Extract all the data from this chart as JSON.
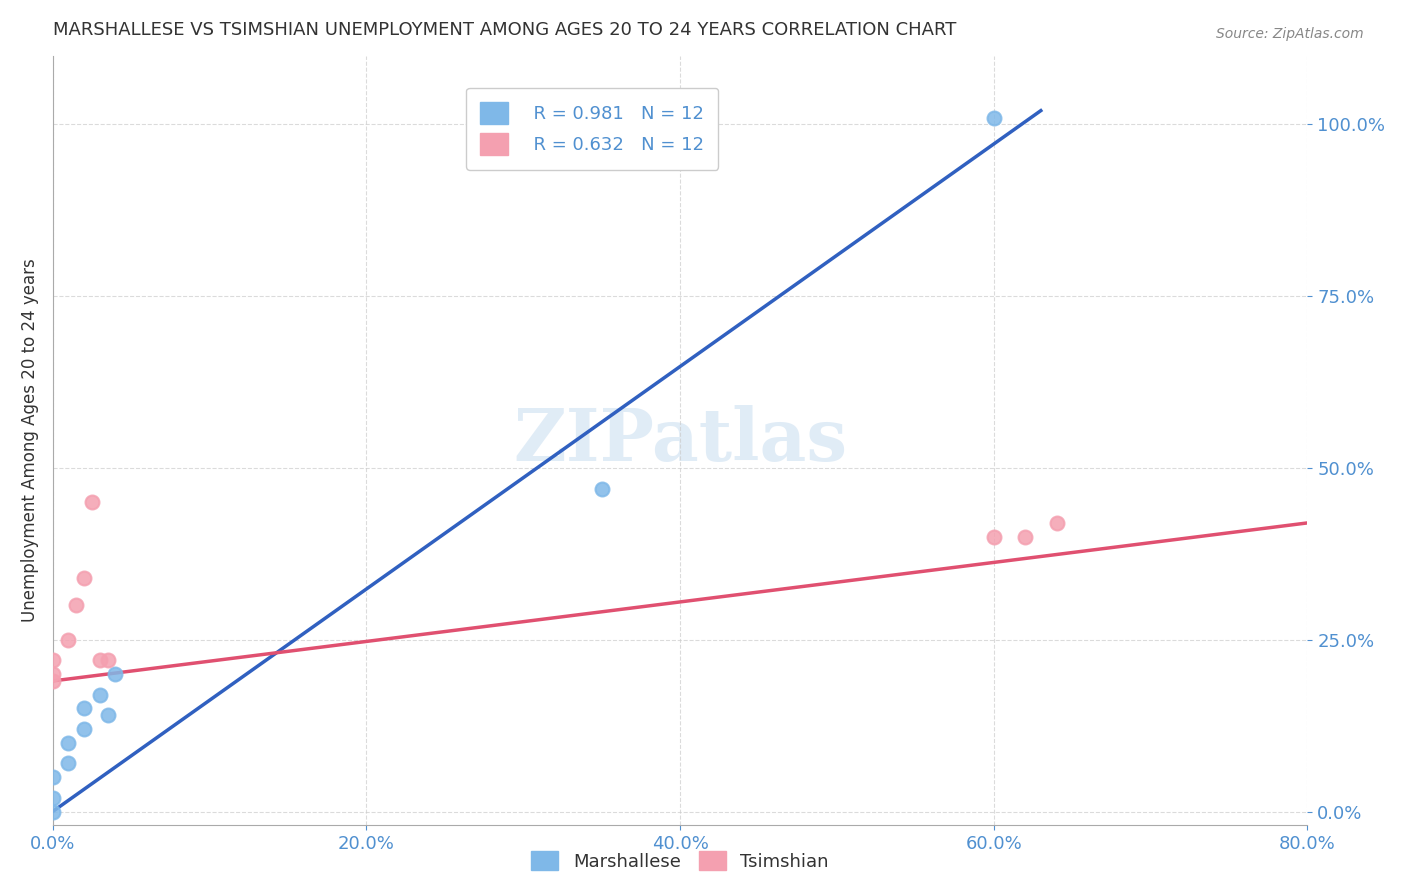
{
  "title": "MARSHALLESE VS TSIMSHIAN UNEMPLOYMENT AMONG AGES 20 TO 24 YEARS CORRELATION CHART",
  "source": "Source: ZipAtlas.com",
  "xlabel": "",
  "ylabel": "Unemployment Among Ages 20 to 24 years",
  "xlim": [
    0.0,
    0.8
  ],
  "ylim": [
    -0.02,
    1.1
  ],
  "xticks": [
    0.0,
    0.2,
    0.4,
    0.6,
    0.8
  ],
  "yticks": [
    0.0,
    0.25,
    0.5,
    0.75,
    1.0
  ],
  "marshallese_x": [
    0.0,
    0.0,
    0.0,
    0.01,
    0.01,
    0.02,
    0.02,
    0.03,
    0.035,
    0.04,
    0.35,
    0.6
  ],
  "marshallese_y": [
    0.0,
    0.02,
    0.05,
    0.07,
    0.1,
    0.12,
    0.15,
    0.17,
    0.14,
    0.2,
    0.47,
    1.01
  ],
  "tsimshian_x": [
    0.0,
    0.0,
    0.0,
    0.01,
    0.015,
    0.02,
    0.025,
    0.03,
    0.035,
    0.6,
    0.62,
    0.64
  ],
  "tsimshian_y": [
    0.19,
    0.2,
    0.22,
    0.25,
    0.3,
    0.34,
    0.45,
    0.22,
    0.22,
    0.4,
    0.4,
    0.42
  ],
  "blue_line_x": [
    0.0,
    0.63
  ],
  "blue_line_y": [
    0.0,
    1.02
  ],
  "pink_line_x": [
    0.0,
    0.8
  ],
  "pink_line_y": [
    0.19,
    0.42
  ],
  "marshallese_color": "#7fB8E8",
  "tsimshian_color": "#F4A0B0",
  "blue_line_color": "#3060C0",
  "pink_line_color": "#E05070",
  "marker_size": 100,
  "legend_r_marshallese": "R = 0.981",
  "legend_n_marshallese": "N = 12",
  "legend_r_tsimshian": "R = 0.632",
  "legend_n_tsimshian": "N = 12",
  "legend_label_marshallese": "Marshallese",
  "legend_label_tsimshian": "Tsimshian",
  "watermark": "ZIPatlas",
  "background_color": "#ffffff",
  "grid_color": "#cccccc",
  "axis_label_color": "#5090D0",
  "title_color": "#333333"
}
